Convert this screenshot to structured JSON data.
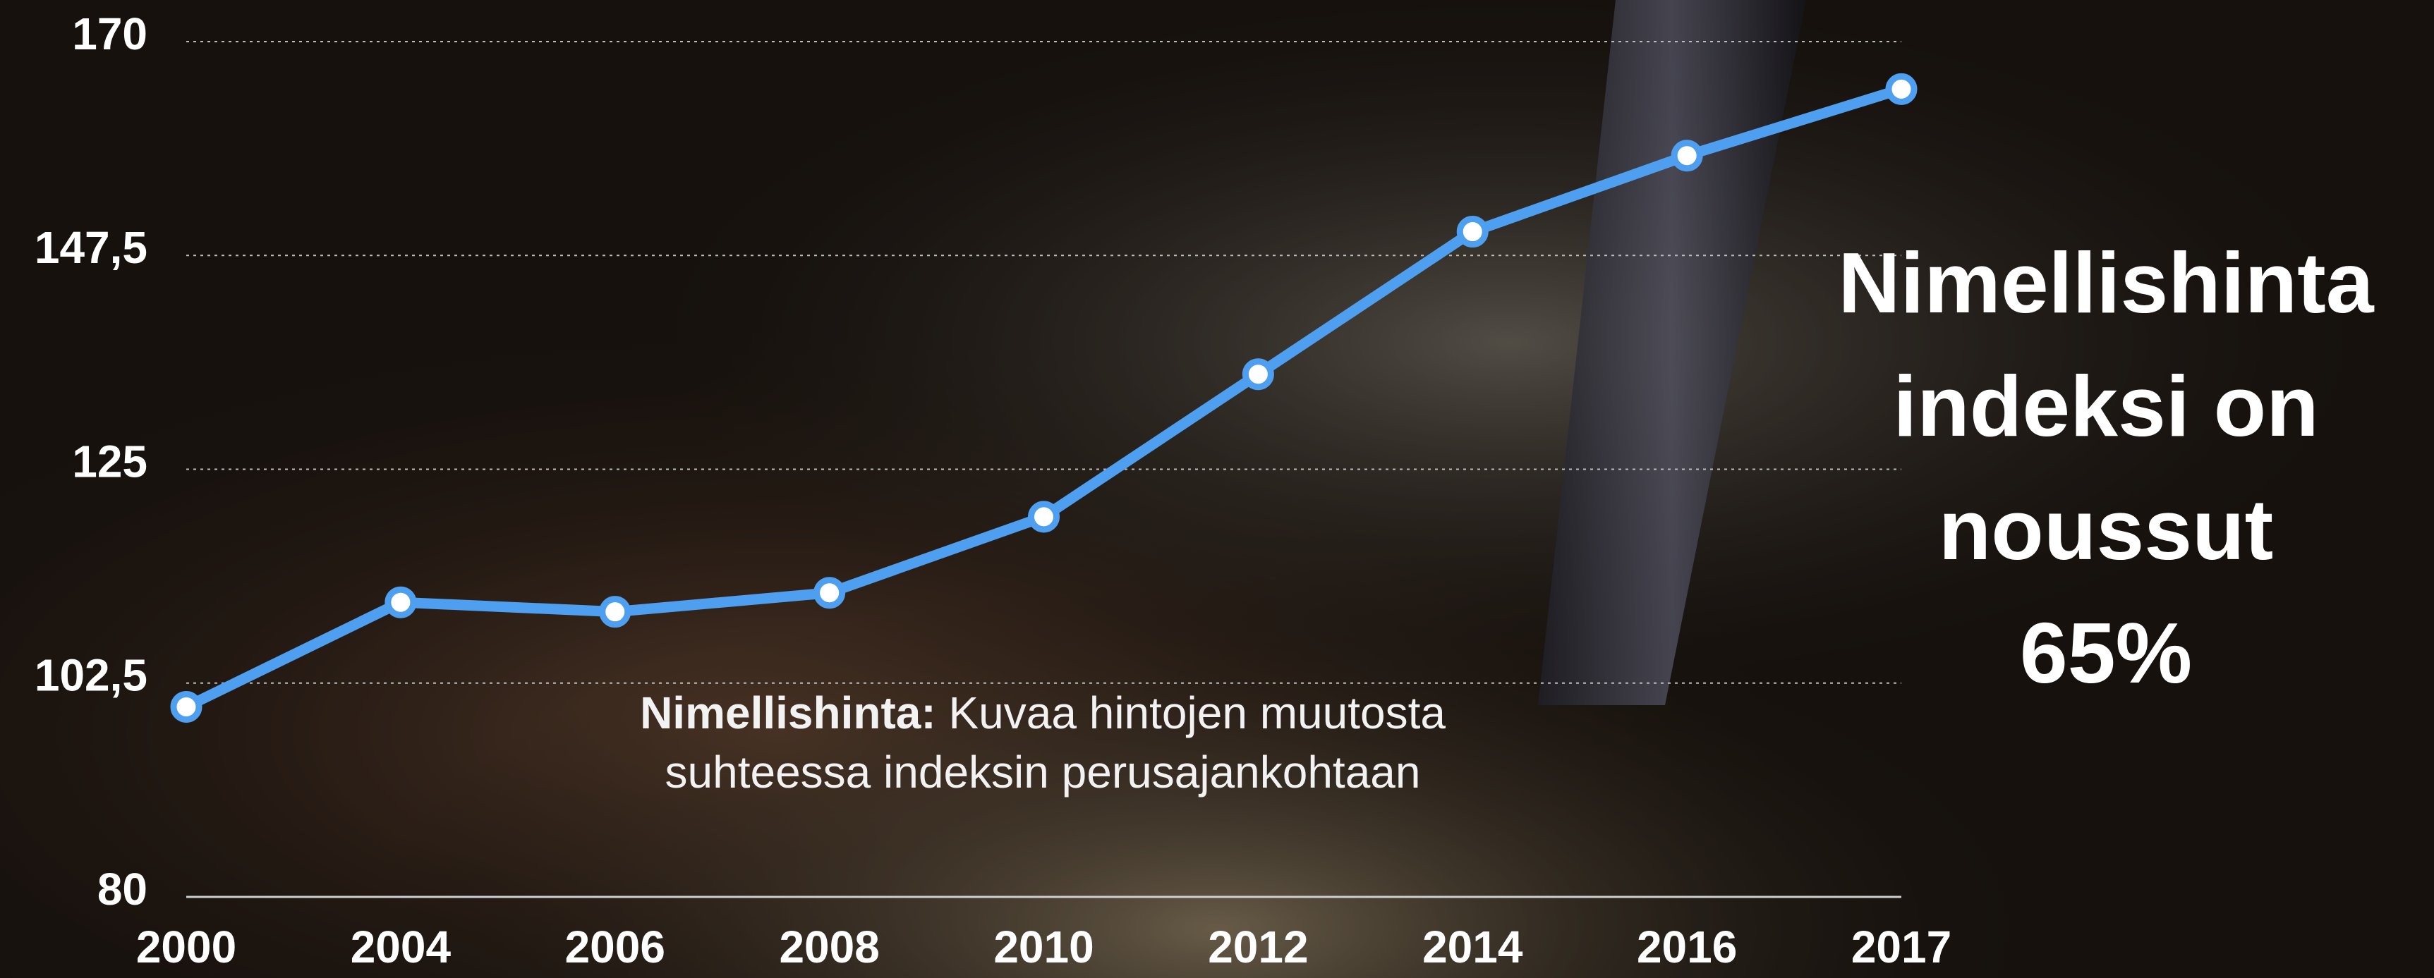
{
  "chart_data": {
    "type": "line",
    "categories": [
      "2000",
      "2004",
      "2006",
      "2008",
      "2010",
      "2012",
      "2014",
      "2016",
      "2017"
    ],
    "series": [
      {
        "color": "#4f9ff0",
        "values": [
          100,
          111,
          110,
          112,
          120,
          135,
          150,
          158,
          165
        ]
      }
    ],
    "ylim": [
      80,
      170
    ],
    "yticks": [
      80,
      {
        "value": 102.5,
        "label": "102,5"
      },
      125,
      {
        "value": 147.5,
        "label": "147,5"
      },
      170
    ],
    "grid": true,
    "note": {
      "label": "Nimellishinta:",
      "lines": [
        "Kuvaa hintojen muutosta",
        "suhteessa indeksin perusajankohtaan"
      ]
    },
    "headline": [
      "Nimellishinta",
      "indeksi on",
      "noussut",
      "65%"
    ]
  }
}
